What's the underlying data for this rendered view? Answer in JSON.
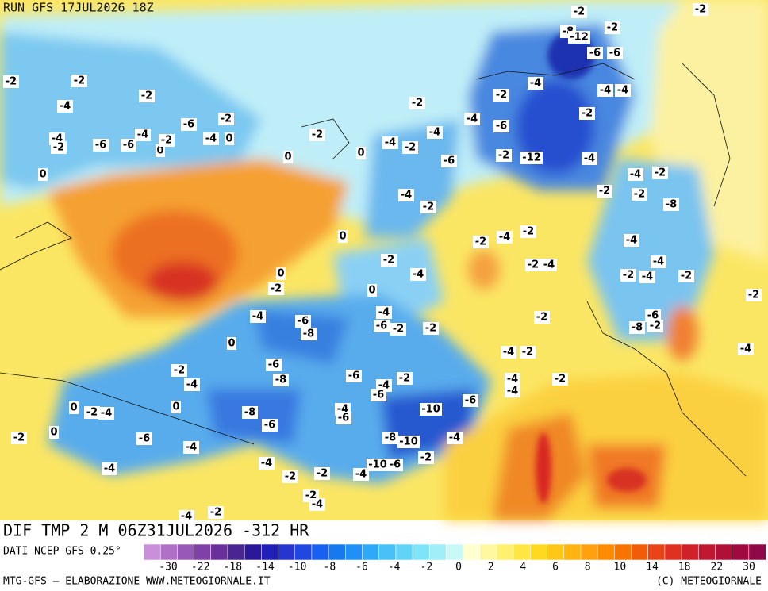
{
  "header": {
    "run": "RUN GFS 17JUL2026 18Z"
  },
  "map_title": "DIF TMP 2 M 06Z31JUL2026 -312 HR",
  "source": "DATI NCEP GFS 0.25°",
  "credit_left": "MTG-GFS — ELABORAZIONE WWW.METEOGIORNALE.IT",
  "credit_right": "(C) METEOGIORNALE",
  "map_labels": [
    -2,
    -2,
    -2,
    -8,
    -12,
    -6,
    -6,
    -2,
    -2,
    -4,
    -2,
    -2,
    -2,
    -4,
    -4,
    -4,
    -2,
    -6,
    -2,
    -4,
    -6,
    -4,
    -4,
    -6,
    -6,
    0,
    -2,
    -4,
    0,
    -2,
    0,
    -4,
    -2,
    0,
    0,
    -4,
    -2,
    -6,
    -2,
    -12,
    -4,
    -2,
    -4,
    -2,
    -2,
    -8,
    -4,
    -2,
    0,
    -2,
    -4,
    -2,
    -4,
    -2,
    -4,
    -2,
    -4,
    0,
    -4,
    -2,
    -4,
    -2,
    0,
    -2,
    -2,
    -4,
    -4,
    -6,
    -8,
    -6,
    -2,
    -2,
    -2,
    -6,
    -8,
    -2,
    0,
    -4,
    -4,
    -2,
    -2,
    -6,
    -8,
    -6,
    -4,
    -2,
    -4,
    -2,
    -4,
    -4,
    -6,
    -6,
    0,
    -2,
    -4,
    0,
    -8,
    -4,
    -6,
    -10,
    -6,
    0,
    -2,
    -6,
    -4,
    -8,
    -10,
    -4,
    -2,
    -4,
    -4,
    -10,
    -6,
    -4,
    -2,
    -2,
    -2,
    -4,
    -4,
    -2
  ],
  "colorbar": {
    "colors": [
      "#c890d8",
      "#b070c8",
      "#9858b8",
      "#8040a8",
      "#683098",
      "#4a2490",
      "#2a1898",
      "#2020b8",
      "#2834d0",
      "#2048e0",
      "#1860f0",
      "#1878f0",
      "#2090f8",
      "#30a8f8",
      "#48c0f8",
      "#60d4f8",
      "#80e4f8",
      "#a0eef8",
      "#c8f8f8",
      "#ffffd0",
      "#fff8a0",
      "#fff070",
      "#ffe640",
      "#ffd820",
      "#ffc818",
      "#ffb410",
      "#ffa010",
      "#ff8c00",
      "#f87400",
      "#f05c08",
      "#e84418",
      "#e03020",
      "#d02028",
      "#c01830",
      "#b01038",
      "#a00840",
      "#900848"
    ],
    "labels": [
      -30,
      -22,
      -18,
      -14,
      -10,
      -8,
      -6,
      -4,
      -2,
      0,
      2,
      4,
      6,
      8,
      10,
      14,
      18,
      22,
      30
    ]
  }
}
